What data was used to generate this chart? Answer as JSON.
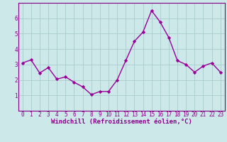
{
  "x": [
    0,
    1,
    2,
    3,
    4,
    5,
    6,
    7,
    8,
    9,
    10,
    11,
    12,
    13,
    14,
    15,
    16,
    17,
    18,
    19,
    20,
    21,
    22,
    23
  ],
  "y": [
    3.1,
    3.3,
    2.45,
    2.8,
    2.05,
    2.2,
    1.85,
    1.55,
    1.05,
    1.25,
    1.25,
    2.0,
    3.25,
    4.5,
    5.1,
    6.5,
    5.75,
    4.75,
    3.25,
    3.0,
    2.5,
    2.9,
    3.1,
    2.5
  ],
  "line_color": "#990099",
  "marker": "D",
  "marker_size": 2.2,
  "bg_color": "#cce8e8",
  "grid_color": "#aacccc",
  "xlabel": "Windchill (Refroidissement éolien,°C)",
  "xlim": [
    -0.5,
    23.5
  ],
  "ylim": [
    0,
    7
  ],
  "yticks": [
    1,
    2,
    3,
    4,
    5,
    6
  ],
  "xticks": [
    0,
    1,
    2,
    3,
    4,
    5,
    6,
    7,
    8,
    9,
    10,
    11,
    12,
    13,
    14,
    15,
    16,
    17,
    18,
    19,
    20,
    21,
    22,
    23
  ],
  "tick_label_size": 5.5,
  "xlabel_size": 6.5,
  "spine_color": "#880088",
  "line_width": 1.0,
  "tick_color": "#880088"
}
